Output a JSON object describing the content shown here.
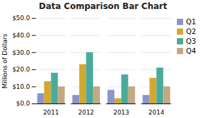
{
  "chart_data": {
    "type": "bar",
    "title": "Data Comparison Bar Chart",
    "ylabel": "Millions of Dollars",
    "categories": [
      "2011",
      "2012",
      "2013",
      "2014"
    ],
    "series": [
      {
        "name": "Q1",
        "color": "#8b95cc",
        "values": [
          6,
          5,
          8,
          5
        ]
      },
      {
        "name": "Q2",
        "color": "#d4a830",
        "values": [
          13,
          23,
          3,
          15
        ]
      },
      {
        "name": "Q3",
        "color": "#4aab9a",
        "values": [
          18,
          30,
          17,
          21
        ]
      },
      {
        "name": "Q4",
        "color": "#c4a882",
        "values": [
          10,
          10,
          10,
          10
        ]
      }
    ],
    "ylim": [
      0,
      50
    ],
    "yticks": [
      {
        "value": 0,
        "label": "$0.0"
      },
      {
        "value": 10,
        "label": "$10.0"
      },
      {
        "value": 20,
        "label": "$20.0"
      },
      {
        "value": 30,
        "label": "$30.0"
      },
      {
        "value": 40,
        "label": "$40.0"
      },
      {
        "value": 50,
        "label": "$50.0"
      }
    ],
    "grid": true,
    "legend": "upper right"
  }
}
